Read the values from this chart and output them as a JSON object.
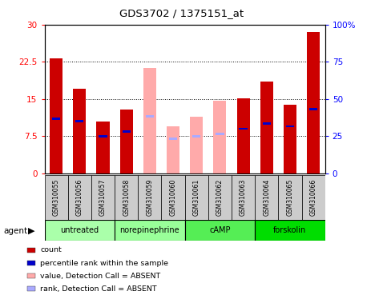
{
  "title": "GDS3702 / 1375151_at",
  "samples": [
    "GSM310055",
    "GSM310056",
    "GSM310057",
    "GSM310058",
    "GSM310059",
    "GSM310060",
    "GSM310061",
    "GSM310062",
    "GSM310063",
    "GSM310064",
    "GSM310065",
    "GSM310066"
  ],
  "groups": [
    {
      "label": "untreated",
      "color": "#aaffaa",
      "start": 0,
      "end": 3
    },
    {
      "label": "norepinephrine",
      "color": "#99ff99",
      "start": 3,
      "end": 6
    },
    {
      "label": "cAMP",
      "color": "#55ee55",
      "start": 6,
      "end": 9
    },
    {
      "label": "forskolin",
      "color": "#00dd00",
      "start": 9,
      "end": 12
    }
  ],
  "bar_values": [
    23.2,
    17.0,
    10.5,
    12.8,
    null,
    null,
    null,
    null,
    15.2,
    18.5,
    13.8,
    28.5
  ],
  "bar_absent": [
    null,
    null,
    null,
    null,
    21.3,
    9.5,
    11.5,
    14.7,
    null,
    null,
    null,
    null
  ],
  "rank_values": [
    11.0,
    10.5,
    7.5,
    8.5,
    null,
    null,
    null,
    null,
    9.0,
    10.0,
    9.5,
    13.0
  ],
  "rank_absent": [
    null,
    null,
    null,
    null,
    11.5,
    7.0,
    7.5,
    8.0,
    null,
    null,
    null,
    null
  ],
  "ylim_left": [
    0,
    30
  ],
  "ylim_right": [
    0,
    100
  ],
  "yticks_left": [
    0,
    7.5,
    15,
    22.5,
    30
  ],
  "yticks_right": [
    0,
    25,
    50,
    75,
    100
  ],
  "yticklabels_left": [
    "0",
    "7.5",
    "15",
    "22.5",
    "30"
  ],
  "yticklabels_right": [
    "0",
    "25",
    "50",
    "75",
    "100%"
  ],
  "bar_color": "#cc0000",
  "bar_absent_color": "#ffaaaa",
  "rank_color": "#0000cc",
  "rank_absent_color": "#aaaaff",
  "bar_width": 0.55,
  "rank_bar_height": 0.45,
  "rank_bar_width": 0.35,
  "agent_label": "agent",
  "legend_items": [
    {
      "color": "#cc0000",
      "label": "count"
    },
    {
      "color": "#0000cc",
      "label": "percentile rank within the sample"
    },
    {
      "color": "#ffaaaa",
      "label": "value, Detection Call = ABSENT"
    },
    {
      "color": "#aaaaff",
      "label": "rank, Detection Call = ABSENT"
    }
  ],
  "sample_box_color": "#cccccc",
  "plot_bg": "white"
}
